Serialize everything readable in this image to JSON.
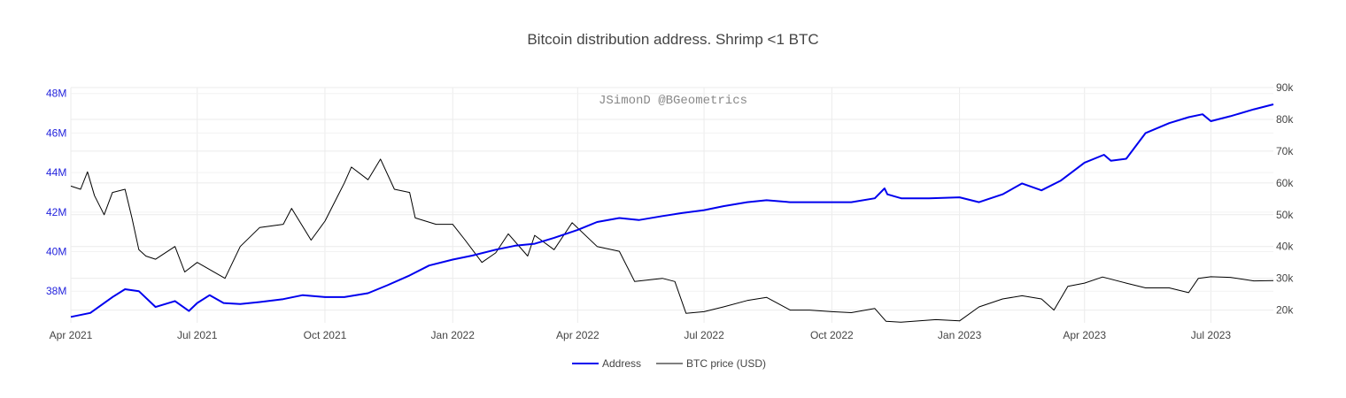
{
  "chart_data": {
    "type": "line",
    "title": "Bitcoin distribution address. Shrimp <1 BTC",
    "annotation": "JSimonD @BGeometrics",
    "x_ticks": [
      "Apr 2021",
      "Jul 2021",
      "Oct 2021",
      "Jan 2022",
      "Apr 2022",
      "Jul 2022",
      "Oct 2022",
      "Jan 2023",
      "Apr 2023",
      "Jul 2023"
    ],
    "y_left_ticks": [
      "38M",
      "40M",
      "42M",
      "44M",
      "46M",
      "48M"
    ],
    "y_right_ticks": [
      "20k",
      "30k",
      "40k",
      "50k",
      "60k",
      "70k",
      "80k",
      "90k"
    ],
    "xlim": [
      "2021-04-01",
      "2023-08-15"
    ],
    "y_left_range": [
      36400000,
      48300000
    ],
    "y_right_range": [
      16000,
      90000
    ],
    "grid": true,
    "legend_position": "bottom-center",
    "series": [
      {
        "name": "Address",
        "axis": "left",
        "color": "#0000ee",
        "points": [
          [
            "2021-04-01",
            36700000
          ],
          [
            "2021-04-15",
            36900000
          ],
          [
            "2021-05-01",
            37700000
          ],
          [
            "2021-05-10",
            38100000
          ],
          [
            "2021-05-20",
            38000000
          ],
          [
            "2021-06-01",
            37200000
          ],
          [
            "2021-06-15",
            37500000
          ],
          [
            "2021-06-25",
            37000000
          ],
          [
            "2021-07-01",
            37400000
          ],
          [
            "2021-07-10",
            37800000
          ],
          [
            "2021-07-20",
            37400000
          ],
          [
            "2021-08-01",
            37350000
          ],
          [
            "2021-08-15",
            37450000
          ],
          [
            "2021-09-01",
            37600000
          ],
          [
            "2021-09-15",
            37800000
          ],
          [
            "2021-10-01",
            37700000
          ],
          [
            "2021-10-15",
            37700000
          ],
          [
            "2021-11-01",
            37900000
          ],
          [
            "2021-11-15",
            38300000
          ],
          [
            "2021-12-01",
            38800000
          ],
          [
            "2021-12-15",
            39300000
          ],
          [
            "2022-01-01",
            39600000
          ],
          [
            "2022-01-15",
            39800000
          ],
          [
            "2022-02-01",
            40100000
          ],
          [
            "2022-02-15",
            40300000
          ],
          [
            "2022-03-01",
            40400000
          ],
          [
            "2022-03-15",
            40700000
          ],
          [
            "2022-04-01",
            41100000
          ],
          [
            "2022-04-15",
            41500000
          ],
          [
            "2022-05-01",
            41700000
          ],
          [
            "2022-05-15",
            41600000
          ],
          [
            "2022-06-01",
            41800000
          ],
          [
            "2022-06-15",
            41950000
          ],
          [
            "2022-07-01",
            42100000
          ],
          [
            "2022-07-15",
            42300000
          ],
          [
            "2022-08-01",
            42500000
          ],
          [
            "2022-08-15",
            42600000
          ],
          [
            "2022-09-01",
            42500000
          ],
          [
            "2022-09-15",
            42500000
          ],
          [
            "2022-10-01",
            42500000
          ],
          [
            "2022-10-15",
            42500000
          ],
          [
            "2022-11-01",
            42700000
          ],
          [
            "2022-11-08",
            43200000
          ],
          [
            "2022-11-10",
            42900000
          ],
          [
            "2022-11-20",
            42700000
          ],
          [
            "2022-12-10",
            42700000
          ],
          [
            "2023-01-01",
            42750000
          ],
          [
            "2023-01-15",
            42500000
          ],
          [
            "2023-02-01",
            42900000
          ],
          [
            "2023-02-15",
            43450000
          ],
          [
            "2023-03-01",
            43100000
          ],
          [
            "2023-03-15",
            43600000
          ],
          [
            "2023-04-01",
            44500000
          ],
          [
            "2023-04-15",
            44900000
          ],
          [
            "2023-04-20",
            44600000
          ],
          [
            "2023-05-01",
            44700000
          ],
          [
            "2023-05-15",
            46000000
          ],
          [
            "2023-06-01",
            46500000
          ],
          [
            "2023-06-15",
            46800000
          ],
          [
            "2023-06-25",
            46950000
          ],
          [
            "2023-07-01",
            46600000
          ],
          [
            "2023-07-15",
            46850000
          ],
          [
            "2023-08-01",
            47200000
          ],
          [
            "2023-08-15",
            47450000
          ]
        ]
      },
      {
        "name": "BTC price (USD)",
        "axis": "right",
        "color": "#000000",
        "points": [
          [
            "2021-04-01",
            59000
          ],
          [
            "2021-04-08",
            58000
          ],
          [
            "2021-04-13",
            63500
          ],
          [
            "2021-04-18",
            56000
          ],
          [
            "2021-04-25",
            50000
          ],
          [
            "2021-05-01",
            57000
          ],
          [
            "2021-05-10",
            58000
          ],
          [
            "2021-05-15",
            49000
          ],
          [
            "2021-05-20",
            39000
          ],
          [
            "2021-05-25",
            37000
          ],
          [
            "2021-06-01",
            36000
          ],
          [
            "2021-06-15",
            40000
          ],
          [
            "2021-06-22",
            32000
          ],
          [
            "2021-07-01",
            35000
          ],
          [
            "2021-07-15",
            31500
          ],
          [
            "2021-07-21",
            30000
          ],
          [
            "2021-08-01",
            40000
          ],
          [
            "2021-08-15",
            46000
          ],
          [
            "2021-09-01",
            47000
          ],
          [
            "2021-09-07",
            52000
          ],
          [
            "2021-09-21",
            42000
          ],
          [
            "2021-10-01",
            48000
          ],
          [
            "2021-10-15",
            60000
          ],
          [
            "2021-10-20",
            65000
          ],
          [
            "2021-11-01",
            61000
          ],
          [
            "2021-11-10",
            67500
          ],
          [
            "2021-11-20",
            58000
          ],
          [
            "2021-12-01",
            57000
          ],
          [
            "2021-12-05",
            49000
          ],
          [
            "2021-12-20",
            47000
          ],
          [
            "2022-01-01",
            47000
          ],
          [
            "2022-01-10",
            42000
          ],
          [
            "2022-01-22",
            35000
          ],
          [
            "2022-02-01",
            38000
          ],
          [
            "2022-02-10",
            44000
          ],
          [
            "2022-02-24",
            37000
          ],
          [
            "2022-03-01",
            43500
          ],
          [
            "2022-03-15",
            39000
          ],
          [
            "2022-03-28",
            47500
          ],
          [
            "2022-04-15",
            40000
          ],
          [
            "2022-05-01",
            38500
          ],
          [
            "2022-05-12",
            29000
          ],
          [
            "2022-06-01",
            30000
          ],
          [
            "2022-06-10",
            29000
          ],
          [
            "2022-06-18",
            19000
          ],
          [
            "2022-07-01",
            19500
          ],
          [
            "2022-07-15",
            21000
          ],
          [
            "2022-08-01",
            23000
          ],
          [
            "2022-08-15",
            24000
          ],
          [
            "2022-09-01",
            20000
          ],
          [
            "2022-09-15",
            20000
          ],
          [
            "2022-10-01",
            19500
          ],
          [
            "2022-10-15",
            19200
          ],
          [
            "2022-11-01",
            20500
          ],
          [
            "2022-11-09",
            16500
          ],
          [
            "2022-11-20",
            16200
          ],
          [
            "2022-12-15",
            17000
          ],
          [
            "2023-01-01",
            16600
          ],
          [
            "2023-01-15",
            21000
          ],
          [
            "2023-02-01",
            23500
          ],
          [
            "2023-02-15",
            24500
          ],
          [
            "2023-03-01",
            23500
          ],
          [
            "2023-03-10",
            20000
          ],
          [
            "2023-03-20",
            27500
          ],
          [
            "2023-04-01",
            28500
          ],
          [
            "2023-04-14",
            30400
          ],
          [
            "2023-05-01",
            28500
          ],
          [
            "2023-05-15",
            27000
          ],
          [
            "2023-06-01",
            27000
          ],
          [
            "2023-06-15",
            25500
          ],
          [
            "2023-06-22",
            30000
          ],
          [
            "2023-07-01",
            30500
          ],
          [
            "2023-07-15",
            30300
          ],
          [
            "2023-08-01",
            29200
          ],
          [
            "2023-08-15",
            29300
          ]
        ]
      }
    ]
  }
}
